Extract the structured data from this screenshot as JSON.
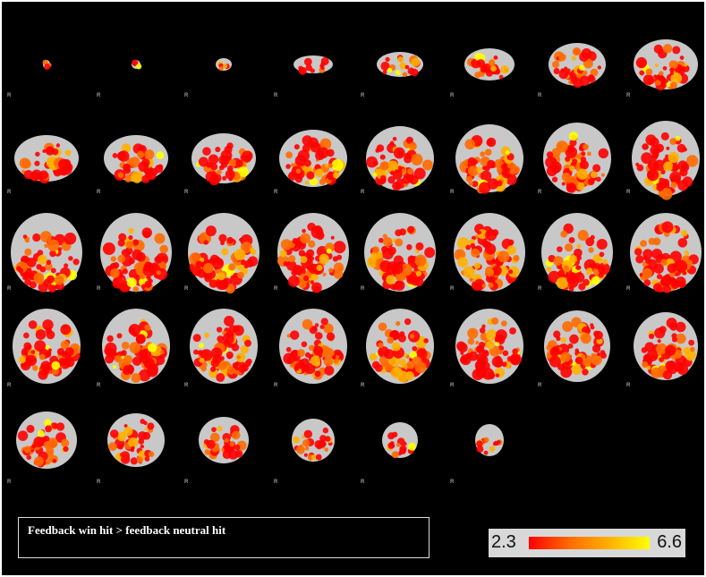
{
  "figure": {
    "caption": "Feedback win hit > feedback neutral hit",
    "orientation_label": "R",
    "grid": {
      "rows": 5,
      "columns": 8,
      "slice_count": 38
    },
    "colorbar": {
      "min_label": "2.3",
      "max_label": "6.6",
      "colors": [
        "#ff0000",
        "#ff6a00",
        "#ffb000",
        "#ffff00"
      ]
    },
    "background_color": "#000000",
    "brain_color": "#c8c8c8"
  }
}
